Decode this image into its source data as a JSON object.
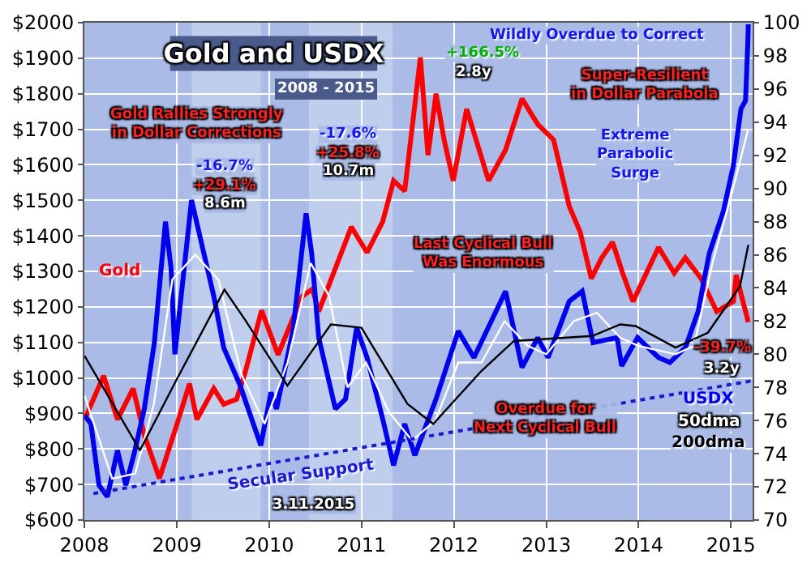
{
  "chart_data": {
    "type": "line",
    "title": "Gold and USDX",
    "subtitle": "2008 - 2015",
    "xlim": [
      "2008-01-01",
      "2015-03-28"
    ],
    "xticks": [
      "2008",
      "2009",
      "2010",
      "2011",
      "2012",
      "2013",
      "2014",
      "2015"
    ],
    "ylim": [
      600,
      2000
    ],
    "yticks": [
      {
        "value": 600,
        "label": "$600"
      },
      {
        "value": 700,
        "label": "$700"
      },
      {
        "value": 800,
        "label": "$800"
      },
      {
        "value": 900,
        "label": "$900"
      },
      {
        "value": 1000,
        "label": "$1000"
      },
      {
        "value": 1100,
        "label": "$1100"
      },
      {
        "value": 1200,
        "label": "$1200"
      },
      {
        "value": 1300,
        "label": "$1300"
      },
      {
        "value": 1400,
        "label": "$1400"
      },
      {
        "value": 1500,
        "label": "$1500"
      },
      {
        "value": 1600,
        "label": "$1600"
      },
      {
        "value": 1700,
        "label": "$1700"
      },
      {
        "value": 1800,
        "label": "$1800"
      },
      {
        "value": 1900,
        "label": "$1900"
      },
      {
        "value": 2000,
        "label": "$2000"
      }
    ],
    "y2lim": [
      70,
      100
    ],
    "y2ticks": [
      70,
      72,
      74,
      76,
      78,
      80,
      82,
      84,
      86,
      88,
      90,
      92,
      94,
      96,
      98,
      100
    ],
    "grid": true,
    "legend": false,
    "marker": "none",
    "bands": [
      {
        "axis": "x",
        "from": "2009-03-01",
        "to": "2009-11-29",
        "color": "#c9d5f0"
      },
      {
        "axis": "x",
        "from": "2010-06-07",
        "to": "2011-05-04",
        "color": "#c9d5f0"
      }
    ],
    "series": [
      {
        "name": "Gold",
        "color": "#ff0000",
        "x": [
          "2008-01-02",
          "2008-03-17",
          "2008-05-11",
          "2008-07-12",
          "2008-08-25",
          "2008-10-24",
          "2009-01-01",
          "2009-02-20",
          "2009-03-21",
          "2009-05-27",
          "2009-07-05",
          "2009-08-25",
          "2009-09-27",
          "2009-12-02",
          "2010-02-05",
          "2010-03-14",
          "2010-05-12",
          "2010-06-21",
          "2010-07-16",
          "2010-09-20",
          "2010-11-22",
          "2011-01-23",
          "2011-03-26",
          "2011-05-08",
          "2011-06-21",
          "2011-08-22",
          "2011-09-21",
          "2011-10-23",
          "2011-11-24",
          "2011-12-30",
          "2012-02-21",
          "2012-05-18",
          "2012-07-24",
          "2012-09-27",
          "2012-11-28",
          "2013-01-30",
          "2013-04-02",
          "2013-05-15",
          "2013-06-28",
          "2013-08-08",
          "2013-09-20",
          "2013-10-30",
          "2013-12-10",
          "2014-03-21",
          "2014-05-22",
          "2014-07-05",
          "2014-09-05",
          "2014-11-06",
          "2015-01-11",
          "2015-01-22",
          "2015-03-11"
        ],
        "values": [
          883,
          1006,
          883,
          970,
          840,
          717,
          869,
          984,
          883,
          970,
          926,
          940,
          1013,
          1190,
          1065,
          1130,
          1230,
          1250,
          1187,
          1309,
          1425,
          1353,
          1440,
          1555,
          1526,
          1902,
          1627,
          1800,
          1670,
          1555,
          1757,
          1555,
          1642,
          1786,
          1714,
          1670,
          1483,
          1411,
          1280,
          1338,
          1382,
          1295,
          1215,
          1368,
          1295,
          1338,
          1280,
          1187,
          1215,
          1290,
          1157
        ]
      },
      {
        "name": "USDX",
        "color": "#0000ee",
        "axis": "y2",
        "x": [
          "2008-01-02",
          "2008-01-27",
          "2008-02-28",
          "2008-04-01",
          "2008-05-11",
          "2008-06-13",
          "2008-07-16",
          "2008-08-25",
          "2008-10-04",
          "2008-10-26",
          "2008-11-17",
          "2008-12-09",
          "2008-12-24",
          "2009-02-28",
          "2009-05-27",
          "2009-07-05",
          "2009-09-06",
          "2009-11-29",
          "2010-01-08",
          "2010-01-30",
          "2010-04-05",
          "2010-05-27",
          "2010-06-18",
          "2010-07-16",
          "2010-09-20",
          "2010-10-30",
          "2010-12-13",
          "2011-01-23",
          "2011-03-26",
          "2011-05-08",
          "2011-06-21",
          "2011-07-31",
          "2011-10-23",
          "2012-01-19",
          "2012-03-21",
          "2012-07-24",
          "2012-09-27",
          "2012-11-28",
          "2013-01-08",
          "2013-04-02",
          "2013-05-23",
          "2013-07-05",
          "2013-10-08",
          "2013-10-26",
          "2013-12-28",
          "2014-03-21",
          "2014-05-05",
          "2014-07-05",
          "2014-08-25",
          "2014-09-16",
          "2014-10-08",
          "2014-12-02",
          "2015-01-11",
          "2015-02-10",
          "2015-02-28",
          "2015-03-09",
          "2015-03-11"
        ],
        "values": [
          76.3,
          75.8,
          72.1,
          71.4,
          74.2,
          72.1,
          74.0,
          76.7,
          80.7,
          84.4,
          88.0,
          85.2,
          80.0,
          89.3,
          83.5,
          80.4,
          78.2,
          74.5,
          77.7,
          76.7,
          81.4,
          88.5,
          86.1,
          81.0,
          76.7,
          77.3,
          81.6,
          79.8,
          76.1,
          73.3,
          75.8,
          73.9,
          77.3,
          81.4,
          79.8,
          83.8,
          79.2,
          81.0,
          79.8,
          83.2,
          83.8,
          80.7,
          81.0,
          79.3,
          81.0,
          79.8,
          79.5,
          80.4,
          82.6,
          84.4,
          86.1,
          88.6,
          91.4,
          94.8,
          95.3,
          98.8,
          99.9
        ]
      },
      {
        "name": "50dma",
        "color": "#ffffff",
        "axis": "y2",
        "x": [
          "2008-01-02",
          "2008-04-20",
          "2008-07-20",
          "2008-10-02",
          "2008-12-14",
          "2009-03-15",
          "2009-06-14",
          "2009-09-13",
          "2009-12-14",
          "2010-03-15",
          "2010-06-14",
          "2010-08-26",
          "2010-11-07",
          "2011-01-19",
          "2011-04-20",
          "2011-07-20",
          "2011-10-20",
          "2012-01-19",
          "2012-04-20",
          "2012-07-20",
          "2012-10-20",
          "2013-01-01",
          "2013-04-20",
          "2013-07-20",
          "2013-10-20",
          "2014-01-01",
          "2014-05-27",
          "2014-08-08",
          "2014-10-20",
          "2015-01-01",
          "2015-03-11"
        ],
        "values": [
          77.5,
          72.5,
          72.8,
          77.0,
          84.5,
          86.0,
          84.5,
          78.8,
          75.8,
          79.5,
          85.5,
          83.5,
          78.0,
          79.5,
          76.5,
          74.8,
          76.0,
          79.5,
          79.5,
          82.0,
          80.5,
          80.0,
          82.0,
          82.5,
          81.0,
          80.5,
          80.0,
          80.5,
          85.5,
          89.5,
          93.6
        ]
      },
      {
        "name": "200dma",
        "color": "#000000",
        "axis": "y2",
        "x": [
          "2008-01-02",
          "2008-08-08",
          "2009-01-01",
          "2009-07-08",
          "2009-10-01",
          "2010-03-14",
          "2010-09-02",
          "2011-01-01",
          "2011-07-02",
          "2011-10-12",
          "2012-04-20",
          "2012-08-26",
          "2013-07-02",
          "2013-10-20",
          "2013-12-20",
          "2014-05-27",
          "2014-10-02",
          "2015-02-06",
          "2015-03-11"
        ],
        "values": [
          79.9,
          74.2,
          78.5,
          83.9,
          82.0,
          78.1,
          81.8,
          81.6,
          77.0,
          75.8,
          79.0,
          80.8,
          81.1,
          81.8,
          81.7,
          80.4,
          81.3,
          84.1,
          86.6
        ]
      },
      {
        "name": "Secular Support",
        "color": "#1a1ad0",
        "axis": "y2",
        "line_style": "dotted",
        "x": [
          "2008-02-06",
          "2015-03-28"
        ],
        "values": [
          71.6,
          78.4
        ]
      }
    ],
    "annotations": [
      "Gold Rallies Strongly\nin Dollar Corrections",
      "-16.7%",
      "+29.1%",
      "8.6m",
      "-17.6%",
      "+25.8%",
      "10.7m",
      "+166.5%",
      "2.8y",
      "Wildly Overdue to Correct",
      "Super-Resilient\nin Dollar Parabola",
      "Extreme\nParabolic\nSurge",
      "Last Cyclical Bull\nWas Enormous",
      "-39.7%",
      "3.2y",
      "Overdue for\nNext Cyclical Bull",
      "3.11.2015"
    ]
  }
}
